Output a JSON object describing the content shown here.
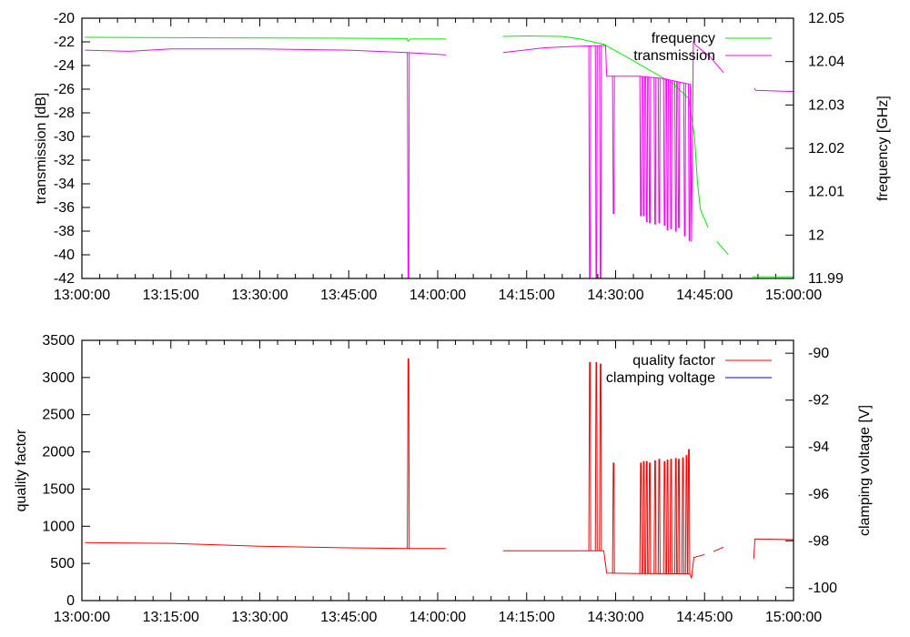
{
  "chart_data": [
    {
      "type": "line",
      "panel": "top",
      "xlabel": "",
      "ylabel": "transmission [dB]",
      "y2label": "frequency [GHz]",
      "xlim": [
        0,
        120
      ],
      "ylim": [
        -42,
        -20
      ],
      "y2lim": [
        11.99,
        12.05
      ],
      "xticks": [
        0,
        15,
        30,
        45,
        60,
        75,
        90,
        105,
        120
      ],
      "xtick_labels": [
        "13:00:00",
        "13:15:00",
        "13:30:00",
        "13:45:00",
        "14:00:00",
        "14:15:00",
        "14:30:00",
        "14:45:00",
        "15:00:00"
      ],
      "yticks": [
        -20,
        -22,
        -24,
        -26,
        -28,
        -30,
        -32,
        -34,
        -36,
        -38,
        -40,
        -42
      ],
      "ytick_labels": [
        "-20",
        "-22",
        "-24",
        "-26",
        "-28",
        "-30",
        "-32",
        "-34",
        "-36",
        "-38",
        "-40",
        "-42"
      ],
      "y2ticks": [
        12.05,
        12.04,
        12.03,
        12.02,
        12.01,
        12,
        11.99
      ],
      "y2tick_labels": [
        "12.05",
        "12.04",
        "12.03",
        "12.02",
        "12.01",
        "12",
        "11.99"
      ],
      "legend_position": "top-right",
      "series": [
        {
          "name": "frequency",
          "axis": "y2",
          "color": "#00ee00",
          "points": [
            [
              0.5,
              12.0456
            ],
            [
              20,
              12.0455
            ],
            [
              40,
              12.0454
            ],
            [
              54.8,
              12.0453
            ],
            [
              55,
              12.0447
            ],
            [
              55.3,
              12.0452
            ],
            [
              61.4,
              12.0452
            ],
            null,
            [
              71,
              12.0458
            ],
            [
              75,
              12.0459
            ],
            [
              81,
              12.0458
            ],
            [
              84,
              12.0452
            ],
            [
              88,
              12.044
            ],
            [
              93.6,
              12.0397
            ],
            [
              99.7,
              12.0349
            ],
            [
              102.3,
              12.0315
            ],
            [
              103.3,
              12.0227
            ],
            [
              103.8,
              12.0122
            ],
            [
              104.3,
              12.0059
            ],
            [
              105.6,
              12.0017
            ],
            null,
            [
              107.1,
              11.9985
            ],
            [
              109,
              11.9955
            ],
            null,
            [
              113,
              11.9904
            ],
            [
              120,
              11.9904
            ]
          ],
          "spikes": []
        },
        {
          "name": "transmission",
          "axis": "y",
          "color": "#ff00ff",
          "points": [
            [
              0.5,
              -22.7
            ],
            [
              8,
              -22.8
            ],
            [
              15,
              -22.6
            ],
            [
              30,
              -22.6
            ],
            [
              45,
              -22.7
            ],
            [
              54.8,
              -22.9
            ],
            [
              61.4,
              -23.1
            ],
            null,
            [
              71,
              -22.9
            ],
            [
              78,
              -22.5
            ],
            [
              82,
              -22.4
            ],
            [
              88.3,
              -22.3
            ],
            [
              88.5,
              -24.9
            ],
            [
              94,
              -24.9
            ],
            [
              98,
              -25.1
            ],
            [
              102.6,
              -25.6
            ],
            [
              102.8,
              -38.9
            ],
            [
              103.1,
              -22
            ],
            [
              103.5,
              -22.3
            ],
            [
              105.8,
              -23.2
            ],
            [
              108.2,
              -24.6
            ],
            null,
            [
              113.4,
              -25.9
            ],
            [
              113.6,
              -26.1
            ],
            [
              120,
              -26.2
            ]
          ],
          "spikes": [
            [
              55,
              -42
            ],
            [
              85.6,
              -42
            ],
            [
              86.7,
              -42
            ],
            [
              87.4,
              -42
            ],
            [
              89.6,
              -36.5
            ],
            [
              94.2,
              -36.7
            ],
            [
              94.7,
              -36.7
            ],
            [
              95.2,
              -37.2
            ],
            [
              95.7,
              -37.3
            ],
            [
              96.6,
              -37.4
            ],
            [
              97.3,
              -37.3
            ],
            [
              98.2,
              -37.5
            ],
            [
              98.7,
              -37.9
            ],
            [
              99.3,
              -37.8
            ],
            [
              100.1,
              -38
            ],
            [
              100.6,
              -37.7
            ],
            [
              101.6,
              -38.4
            ],
            [
              102.4,
              -38.8
            ]
          ]
        }
      ]
    },
    {
      "type": "line",
      "panel": "bottom",
      "xlabel": "",
      "ylabel": "quality factor",
      "y2label": "clamping voltage [V]",
      "xlim": [
        0,
        120
      ],
      "ylim": [
        0,
        3500
      ],
      "y2lim": [
        -100.55,
        -89.45
      ],
      "xticks": [
        0,
        15,
        30,
        45,
        60,
        75,
        90,
        105,
        120
      ],
      "xtick_labels": [
        "13:00:00",
        "13:15:00",
        "13:30:00",
        "13:45:00",
        "14:00:00",
        "14:15:00",
        "14:30:00",
        "14:45:00",
        "15:00:00"
      ],
      "yticks": [
        0,
        500,
        1000,
        1500,
        2000,
        2500,
        3000,
        3500
      ],
      "ytick_labels": [
        "0",
        "500",
        "1000",
        "1500",
        "2000",
        "2500",
        "3000",
        "3500"
      ],
      "y2ticks": [
        -90,
        -92,
        -94,
        -96,
        -98,
        -100
      ],
      "y2tick_labels": [
        "-90",
        "-92",
        "-94",
        "-96",
        "-98",
        "-100"
      ],
      "legend_position": "top-right",
      "series": [
        {
          "name": "quality factor",
          "axis": "y",
          "color": "#ff0000",
          "points": [
            [
              0.5,
              780
            ],
            [
              15,
              770
            ],
            [
              30,
              730
            ],
            [
              45,
              710
            ],
            [
              54.8,
              700
            ],
            [
              61.4,
              700
            ],
            null,
            [
              71,
              670
            ],
            [
              88,
              670
            ],
            [
              88.5,
              370
            ],
            [
              94,
              365
            ],
            [
              102.5,
              360
            ],
            [
              102.8,
              300
            ],
            [
              103.2,
              580
            ],
            [
              105,
              620
            ],
            null,
            [
              106.5,
              660
            ],
            [
              108.2,
              720
            ],
            null,
            [
              113.3,
              560
            ],
            [
              113.5,
              830
            ],
            [
              120,
              820
            ]
          ],
          "spikes": [
            [
              55,
              3250
            ],
            [
              85.6,
              3200
            ],
            [
              86.7,
              3200
            ],
            [
              87.4,
              3180
            ],
            [
              89.6,
              1850
            ],
            [
              94.2,
              1850
            ],
            [
              94.7,
              1870
            ],
            [
              95.2,
              1870
            ],
            [
              95.7,
              1850
            ],
            [
              96.6,
              1880
            ],
            [
              97.3,
              1900
            ],
            [
              98.2,
              1870
            ],
            [
              98.7,
              1890
            ],
            [
              99.3,
              1900
            ],
            [
              100.1,
              1910
            ],
            [
              100.6,
              1900
            ],
            [
              101.3,
              1920
            ],
            [
              101.9,
              1950
            ],
            [
              102.3,
              2030
            ]
          ]
        },
        {
          "name": "clamping voltage",
          "axis": "y2",
          "color": "#0000ff",
          "points": [],
          "spikes": []
        }
      ]
    }
  ]
}
